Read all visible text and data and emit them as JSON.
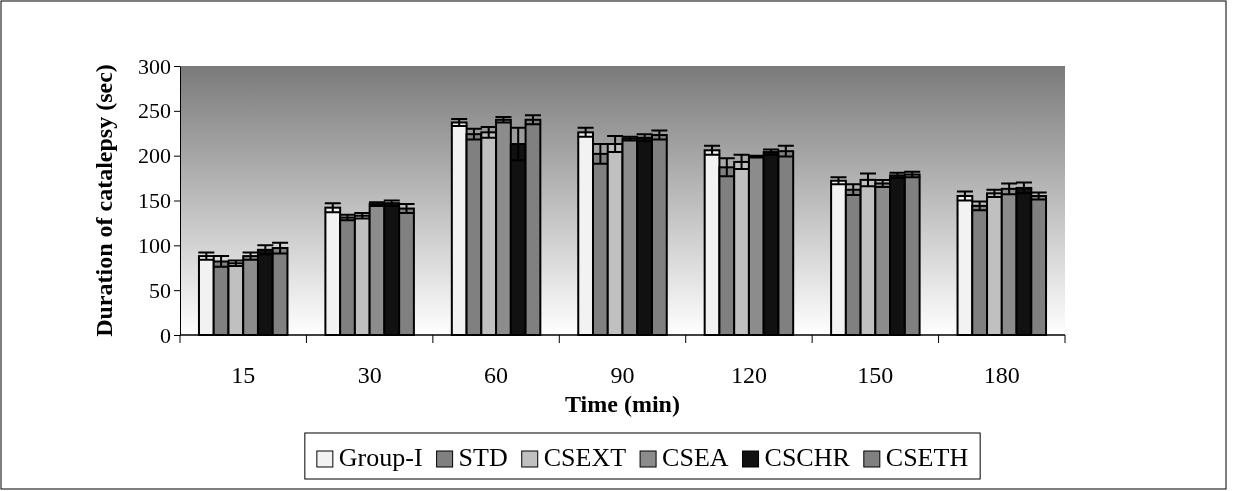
{
  "chart_data": {
    "type": "bar",
    "xlabel": "Time (min)",
    "ylabel": "Duration of catalepsy (sec)",
    "categories": [
      "15",
      "30",
      "60",
      "90",
      "120",
      "150",
      "180"
    ],
    "series": [
      {
        "name": "Group-I",
        "color": "#f2f2f2",
        "values": [
          88,
          142,
          237,
          226,
          206,
          172,
          155
        ],
        "errors": [
          4,
          5,
          4,
          5,
          5,
          4,
          5
        ]
      },
      {
        "name": "STD",
        "color": "#808080",
        "values": [
          82,
          131,
          224,
          202,
          187,
          162,
          144
        ],
        "errors": [
          6,
          3,
          6,
          11,
          10,
          6,
          5
        ]
      },
      {
        "name": "CSEXT",
        "color": "#c0c0c0",
        "values": [
          80,
          133,
          226,
          213,
          193,
          173,
          158
        ],
        "errors": [
          3,
          3,
          6,
          9,
          8,
          7,
          4
        ]
      },
      {
        "name": "CSEA",
        "color": "#8c8c8c",
        "values": [
          88,
          146,
          240,
          219,
          199,
          169,
          163
        ],
        "errors": [
          4,
          2,
          3,
          2,
          1,
          4,
          6
        ]
      },
      {
        "name": "CSCHR",
        "color": "#111111",
        "values": [
          95,
          147,
          213,
          220,
          204,
          178,
          164
        ],
        "errors": [
          5,
          3,
          18,
          4,
          3,
          3,
          6
        ]
      },
      {
        "name": "CSETH",
        "color": "#808080",
        "values": [
          97,
          141,
          240,
          223,
          205,
          179,
          155
        ],
        "errors": [
          6,
          5,
          5,
          5,
          6,
          3,
          4
        ]
      }
    ],
    "ylim": [
      0,
      300
    ],
    "yticks": [
      0,
      50,
      100,
      150,
      200,
      250,
      300
    ],
    "legend": "bottom",
    "grid": false
  }
}
